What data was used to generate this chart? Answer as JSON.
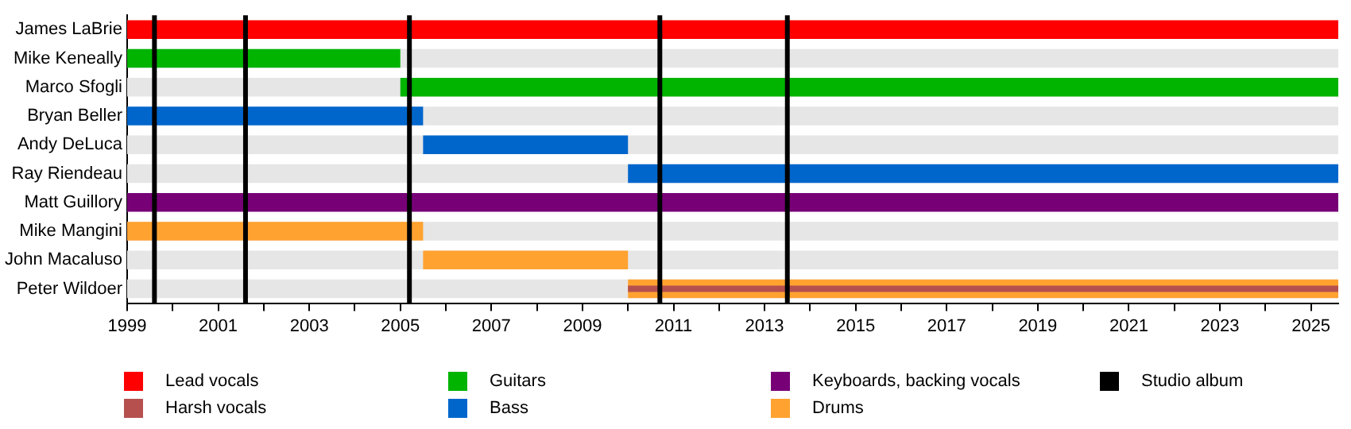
{
  "chart_data": {
    "type": "bar",
    "orientation": "horizontal",
    "stacked": false,
    "categories": [
      "James LaBrie",
      "Mike Keneally",
      "Marco Sfogli",
      "Bryan Beller",
      "Andy DeLuca",
      "Ray Riendeau",
      "Matt Guillory",
      "Mike Mangini",
      "John Macaluso",
      "Peter Wildoer"
    ],
    "series": [
      {
        "name": "Lead vocals",
        "color": "#ff0000",
        "values": [
          26.6,
          null,
          null,
          null,
          null,
          null,
          null,
          null,
          null,
          null
        ],
        "base": [
          1999,
          null,
          null,
          null,
          null,
          null,
          null,
          null,
          null,
          null
        ]
      },
      {
        "name": "Harsh vocals",
        "color": "#b5504e",
        "values": [
          null,
          null,
          null,
          null,
          null,
          null,
          null,
          null,
          null,
          15.6
        ],
        "base": [
          null,
          null,
          null,
          null,
          null,
          null,
          null,
          null,
          null,
          2010
        ]
      },
      {
        "name": "Guitars",
        "color": "#00b400",
        "values": [
          null,
          6,
          20.6,
          null,
          null,
          null,
          null,
          null,
          null,
          null
        ],
        "base": [
          null,
          1999,
          2005,
          null,
          null,
          null,
          null,
          null,
          null,
          null
        ]
      },
      {
        "name": "Bass",
        "color": "#0066cc",
        "values": [
          null,
          null,
          null,
          6.5,
          4.5,
          15.6,
          null,
          null,
          null,
          null
        ],
        "base": [
          null,
          null,
          null,
          1999,
          2005.5,
          2010,
          null,
          null,
          null,
          null
        ]
      },
      {
        "name": "Keyboards, backing vocals",
        "color": "#770077",
        "values": [
          null,
          null,
          null,
          null,
          null,
          null,
          26.6,
          null,
          null,
          null
        ],
        "base": [
          null,
          null,
          null,
          null,
          null,
          null,
          1999,
          null,
          null,
          null
        ]
      },
      {
        "name": "Drums",
        "color": "#ffa230",
        "values": [
          null,
          null,
          null,
          null,
          null,
          null,
          null,
          6.5,
          4.5,
          15.6
        ],
        "base": [
          null,
          null,
          null,
          null,
          null,
          null,
          null,
          1999,
          2005.5,
          2010
        ]
      }
    ],
    "xlim": [
      1999,
      2025.6
    ],
    "xticks": [
      1999,
      {
        "value": 2000,
        "label": null
      },
      2001,
      {
        "value": 2002,
        "label": null
      },
      2003,
      {
        "value": 2004,
        "label": null
      },
      2005,
      {
        "value": 2006,
        "label": null
      },
      2007,
      {
        "value": 2008,
        "label": null
      },
      2009,
      {
        "value": 2010,
        "label": null
      },
      2011,
      {
        "value": 2012,
        "label": null
      },
      2013,
      {
        "value": 2014,
        "label": null
      },
      2015,
      {
        "value": 2016,
        "label": null
      },
      2017,
      {
        "value": 2018,
        "label": null
      },
      2019,
      {
        "value": 2020,
        "label": null
      },
      2021,
      {
        "value": 2022,
        "label": null
      },
      2023,
      {
        "value": 2024,
        "label": null
      },
      2025
    ],
    "ref_lines": [
      {
        "axis": "x",
        "value": 1999.6,
        "label": "Studio album",
        "color": "#000000"
      },
      {
        "axis": "x",
        "value": 2001.6,
        "label": null,
        "color": "#000000"
      },
      {
        "axis": "x",
        "value": 2005.2,
        "label": null,
        "color": "#000000"
      },
      {
        "axis": "x",
        "value": 2010.7,
        "label": null,
        "color": "#000000"
      },
      {
        "axis": "x",
        "value": 2013.5,
        "label": null,
        "color": "#000000"
      }
    ],
    "grid": false,
    "legend": "bottom"
  }
}
